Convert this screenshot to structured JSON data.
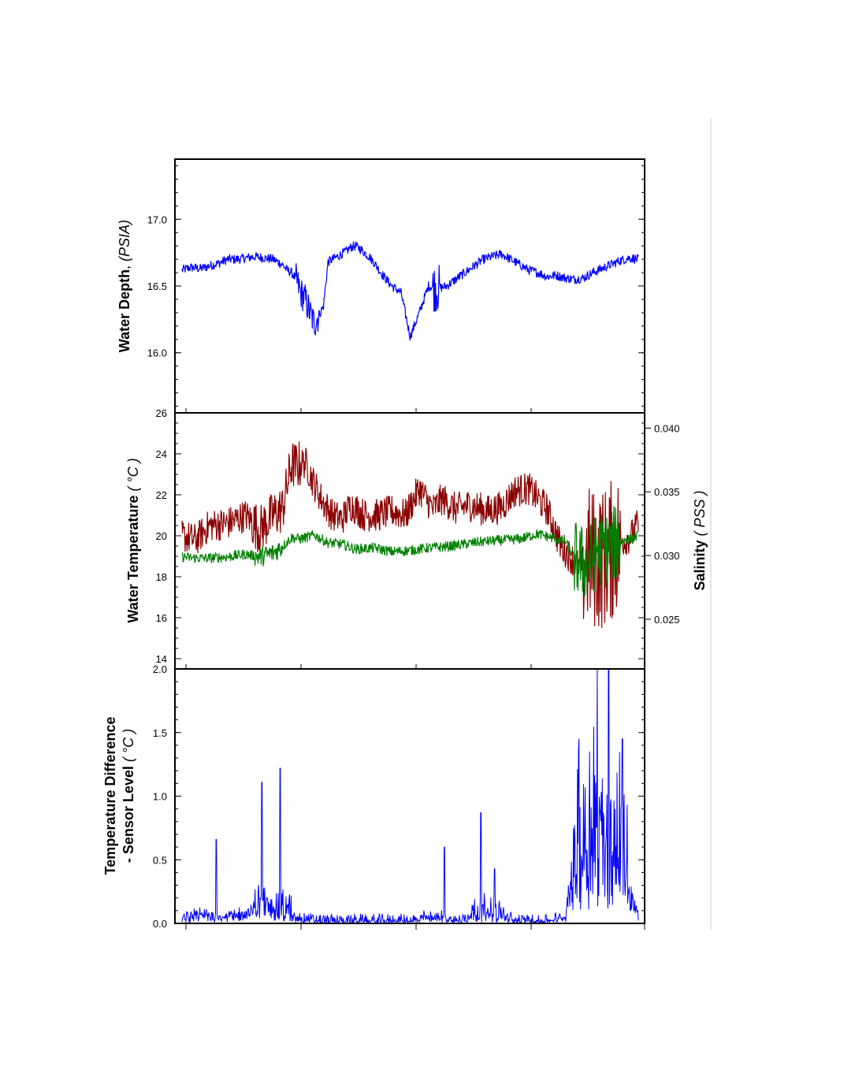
{
  "colors": {
    "depth": "#0000ff",
    "temperature": "#8b0000",
    "salinity": "#008000",
    "temp_difference": "#0000ff",
    "frame": "#000000",
    "side_rule": "#cccccc"
  },
  "chart_data": [
    {
      "type": "line",
      "ylabel": {
        "main": "Water Depth",
        "sep": ", ",
        "unit": "(PSIA)"
      },
      "ylim": [
        15.55,
        17.45
      ],
      "yticks": [
        "16.0",
        "16.5",
        "17.0"
      ],
      "yticks_values": [
        16.0,
        16.5,
        17.0
      ],
      "x_ticks_count": 4,
      "grid": false,
      "series": [
        {
          "color_key": "depth",
          "x": [
            0,
            2,
            4,
            6,
            8,
            10,
            12,
            14,
            16,
            18,
            20,
            22,
            23,
            24,
            25,
            26,
            27,
            28,
            29,
            30,
            31,
            32,
            33,
            34,
            35,
            36,
            37,
            38,
            39,
            40,
            41,
            42,
            43,
            44,
            46,
            48,
            50,
            52,
            54,
            56,
            58,
            60,
            62,
            64,
            66,
            68,
            70,
            72,
            74,
            76,
            78,
            80,
            82,
            84,
            86,
            88,
            90,
            92,
            94,
            96,
            98,
            100
          ],
          "values": [
            16.62,
            16.64,
            16.63,
            16.65,
            16.67,
            16.7,
            16.7,
            16.71,
            16.72,
            16.71,
            16.7,
            16.66,
            16.62,
            16.6,
            16.55,
            16.45,
            16.4,
            16.3,
            16.22,
            16.28,
            16.35,
            16.68,
            16.7,
            16.72,
            16.74,
            16.76,
            16.79,
            16.8,
            16.78,
            16.75,
            16.72,
            16.68,
            16.63,
            16.58,
            16.5,
            16.45,
            16.12,
            16.3,
            16.5,
            16.48,
            16.5,
            16.55,
            16.6,
            16.65,
            16.7,
            16.72,
            16.74,
            16.7,
            16.66,
            16.62,
            16.6,
            16.57,
            16.58,
            16.56,
            16.55,
            16.56,
            16.6,
            16.63,
            16.66,
            16.69,
            16.71,
            16.7
          ],
          "noise": 0.035,
          "noise_windows": [
            {
              "x": [
                25,
                30
              ],
              "amplitude": 0.12
            },
            {
              "x": [
                55,
                56.5
              ],
              "amplitude": 0.18
            }
          ]
        }
      ]
    },
    {
      "type": "line",
      "ylabel": {
        "main": "Water Temperature",
        "unit": "( °C )"
      },
      "ylim": [
        13.5,
        26
      ],
      "yticks": [
        "14",
        "16",
        "18",
        "20",
        "22",
        "24",
        "26"
      ],
      "yticks_values": [
        14,
        16,
        18,
        20,
        22,
        24,
        26
      ],
      "y2label": {
        "main": "Salinity",
        "unit": "( PSS )"
      },
      "y2lim": [
        0.0211,
        0.0412
      ],
      "y2ticks": [
        "0.025",
        "0.030",
        "0.035",
        "0.040"
      ],
      "y2ticks_values": [
        0.025,
        0.03,
        0.035,
        0.04
      ],
      "x_ticks_count": 4,
      "grid": false,
      "series": [
        {
          "color_key": "temperature",
          "axis": "left",
          "x": [
            0,
            3,
            6,
            10,
            14,
            17,
            20,
            22,
            24,
            25,
            27,
            29,
            31,
            33,
            35,
            37,
            40,
            43,
            46,
            49,
            52,
            55,
            57,
            60,
            63,
            67,
            70,
            73,
            76,
            80,
            83,
            85,
            87,
            89,
            91,
            93,
            95,
            97,
            98.5,
            100
          ],
          "values": [
            20.0,
            19.8,
            20.5,
            20.6,
            21.0,
            20.3,
            21.0,
            21.3,
            23.5,
            23.4,
            23.6,
            22.5,
            21.6,
            21.0,
            20.8,
            21.5,
            21.0,
            21.0,
            21.2,
            21.0,
            22.3,
            21.3,
            21.8,
            21.3,
            21.5,
            21.2,
            21.4,
            22.2,
            22.3,
            21.3,
            19.5,
            19.0,
            18.5,
            19.0,
            18.8,
            19.0,
            19.5,
            19.8,
            20.0,
            20.6
          ],
          "noise": 0.8,
          "noise_windows": [
            {
              "x": [
                88,
                96
              ],
              "amplitude": 3.5
            },
            {
              "x": [
                15,
                26
              ],
              "amplitude": 1.2
            }
          ]
        },
        {
          "color_key": "salinity",
          "axis": "right",
          "x": [
            0,
            3,
            6,
            10,
            14,
            17,
            20,
            22,
            24,
            26,
            29,
            32,
            35,
            38,
            42,
            46,
            50,
            54,
            58,
            62,
            66,
            70,
            74,
            78,
            82,
            84,
            86,
            89,
            91,
            93,
            95,
            97,
            98.5,
            100
          ],
          "values": [
            0.0299,
            0.0298,
            0.0298,
            0.0299,
            0.0301,
            0.0299,
            0.0302,
            0.0307,
            0.0314,
            0.0313,
            0.0316,
            0.031,
            0.0309,
            0.0305,
            0.0306,
            0.0303,
            0.0304,
            0.0306,
            0.0307,
            0.0309,
            0.0311,
            0.0312,
            0.0313,
            0.0317,
            0.0313,
            0.0311,
            0.0298,
            0.0292,
            0.0306,
            0.0304,
            0.031,
            0.0312,
            0.0313,
            0.0316
          ],
          "noise": 0.0004,
          "noise_windows": [
            {
              "x": [
                86,
                96
              ],
              "amplitude": 0.003
            },
            {
              "x": [
                16,
                22
              ],
              "amplitude": 0.0008
            }
          ]
        }
      ]
    },
    {
      "type": "line",
      "ylabel": {
        "line1": "Temperature Difference",
        "line2": "- Sensor Level",
        "unit": "( °C )"
      },
      "ylim": [
        0,
        2.0
      ],
      "yticks": [
        "0.0",
        "0.5",
        "1.0",
        "1.5",
        "2.0"
      ],
      "yticks_values": [
        0.0,
        0.5,
        1.0,
        1.5,
        2.0
      ],
      "x_ticks_count": 4,
      "grid": false,
      "series": [
        {
          "color_key": "temp_difference",
          "x": [
            0,
            5,
            10,
            15,
            17,
            20,
            25,
            30,
            35,
            40,
            45,
            50,
            55,
            60,
            65,
            70,
            75,
            80,
            84,
            86,
            88,
            90,
            92,
            94,
            96,
            98,
            100
          ],
          "values": [
            0.02,
            0.05,
            0.04,
            0.06,
            0.12,
            0.08,
            0.03,
            0.01,
            0.01,
            0.01,
            0.01,
            0.01,
            0.04,
            0.01,
            0.06,
            0.03,
            0.01,
            0.01,
            0.03,
            0.45,
            0.5,
            0.6,
            0.5,
            0.45,
            0.35,
            0.2,
            0.05
          ],
          "noise": 0.06,
          "noise_windows": [
            {
              "x": [
                86,
                98
              ],
              "amplitude": 0.8
            },
            {
              "x": [
                16,
                24
              ],
              "amplitude": 0.2
            },
            {
              "x": [
                63,
                71
              ],
              "amplitude": 0.15
            }
          ],
          "spikes": [
            {
              "x": 7.5,
              "y": 0.66
            },
            {
              "x": 17.5,
              "y": 1.11
            },
            {
              "x": 21.5,
              "y": 1.22
            },
            {
              "x": 57.5,
              "y": 0.6
            },
            {
              "x": 65.5,
              "y": 0.87
            },
            {
              "x": 68.5,
              "y": 0.43
            },
            {
              "x": 87,
              "y": 1.45
            },
            {
              "x": 91,
              "y": 2.0
            },
            {
              "x": 93.5,
              "y": 2.0
            },
            {
              "x": 96.5,
              "y": 1.45
            }
          ]
        }
      ]
    }
  ]
}
